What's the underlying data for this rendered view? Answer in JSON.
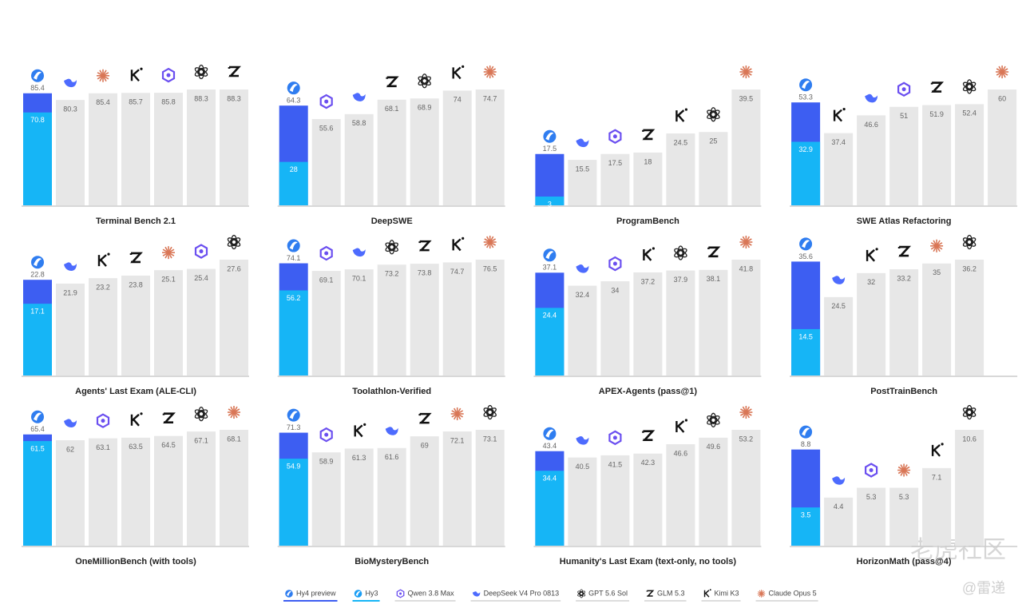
{
  "chart_data": {
    "type": "bar",
    "categories": [
      "Terminal Bench 2.1",
      "DeepSWE",
      "ProgramBench",
      "SWE Atlas Refactoring",
      "Agents' Last Exam (ALE-CLI)",
      "Toolathlon-Verified",
      "APEX-Agents (pass@1)",
      "PostTrainBench",
      "OneMillionBench (with tools)",
      "BioMysteryBench",
      "Humanity's Last Exam (text-only, no tools)",
      "HorizonMath (pass@4)"
    ],
    "series": [
      {
        "name": "Hy4 preview",
        "color": "#3d5ef2",
        "values": [
          85.4,
          64.3,
          17.5,
          53.3,
          22.8,
          74.1,
          37.1,
          35.6,
          65.4,
          71.3,
          43.4,
          8.8
        ]
      },
      {
        "name": "Hy3",
        "color": "#16b5f6",
        "values": [
          70.8,
          28.0,
          3.0,
          32.9,
          17.1,
          56.2,
          24.4,
          14.5,
          61.5,
          54.9,
          34.4,
          3.5
        ]
      },
      {
        "name": "Qwen 3.8 Max",
        "color": "#e7e7e7",
        "values": [
          85.8,
          55.6,
          17.5,
          51.0,
          25.4,
          69.1,
          34.0,
          null,
          63.1,
          58.9,
          41.5,
          5.3
        ]
      },
      {
        "name": "DeepSeek V4 Pro 0813",
        "color": "#e7e7e7",
        "values": [
          80.3,
          58.8,
          15.5,
          46.6,
          21.9,
          70.1,
          32.4,
          24.5,
          62.0,
          61.6,
          40.5,
          4.4
        ]
      },
      {
        "name": "GPT 5.6 Sol",
        "color": "#e7e7e7",
        "values": [
          88.3,
          68.9,
          25.0,
          52.4,
          27.6,
          73.2,
          37.9,
          36.2,
          67.1,
          73.1,
          49.6,
          10.6
        ]
      },
      {
        "name": "GLM 5.3",
        "color": "#e7e7e7",
        "values": [
          88.3,
          68.1,
          18.0,
          51.9,
          23.8,
          73.8,
          38.1,
          33.2,
          64.5,
          69.0,
          42.3,
          null
        ]
      },
      {
        "name": "Kimi K3",
        "color": "#e7e7e7",
        "values": [
          85.7,
          74.0,
          24.5,
          37.4,
          23.2,
          74.7,
          37.2,
          32.0,
          63.5,
          61.3,
          46.6,
          7.1
        ]
      },
      {
        "name": "Claude Opus 5",
        "color": "#e7e7e7",
        "values": [
          85.4,
          74.7,
          39.5,
          60.0,
          25.1,
          76.5,
          41.8,
          35.0,
          68.1,
          72.1,
          53.2,
          5.3
        ]
      }
    ]
  },
  "watermark": [
    "老虎社区",
    "@雷递"
  ]
}
